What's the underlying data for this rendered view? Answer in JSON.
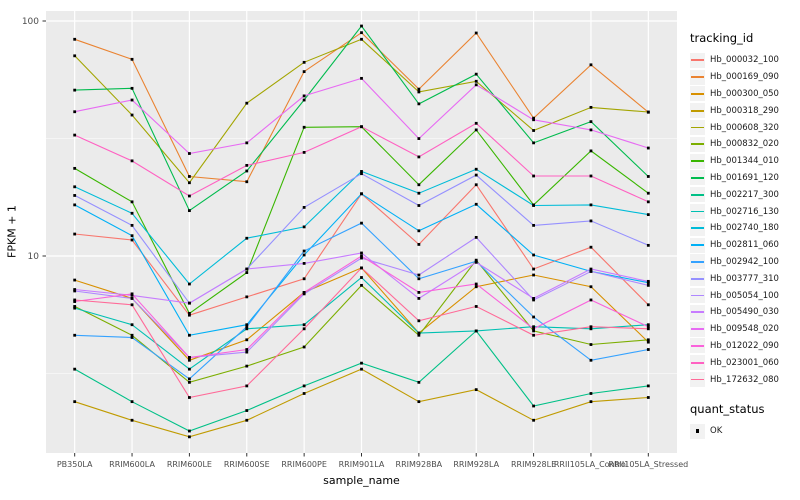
{
  "chart_data": {
    "type": "line",
    "title": "",
    "xlabel": "sample_name",
    "ylabel": "FPKM + 1",
    "y_scale": "log10",
    "y_ticks": [
      100,
      10
    ],
    "y_minor_ticks": [
      31.62,
      3.162
    ],
    "ylim": [
      1.45,
      110
    ],
    "grid": "on",
    "panel_bg": "#EBEBEB",
    "grid_color": "#FFFFFF",
    "point_color": "#000000",
    "legend_position": "right",
    "categories": [
      "PB350LA",
      "RRIM600LA",
      "RRIM600LE",
      "RRIM600SE",
      "RRIM600PE",
      "RRIM901LA",
      "RRIM928BA",
      "RRIM928LA",
      "RRIM928LE",
      "RRII105LA_Control",
      "RRII105LA_Stressed"
    ],
    "series": [
      {
        "name": "Hb_000032_100",
        "color": "#F8766D",
        "values": [
          12.4,
          11.7,
          5.6,
          6.7,
          8.0,
          18.4,
          11.2,
          20.1,
          8.8,
          10.9,
          6.2
        ]
      },
      {
        "name": "Hb_000169_090",
        "color": "#EA8331",
        "values": [
          83.6,
          68.7,
          21.8,
          20.7,
          60.9,
          89.2,
          51.3,
          88.9,
          38.6,
          65.1,
          40.9
        ]
      },
      {
        "name": "Hb_000300_050",
        "color": "#D89000",
        "values": [
          7.9,
          6.6,
          3.6,
          4.4,
          7.0,
          8.9,
          4.7,
          7.4,
          8.3,
          7.4,
          4.3
        ]
      },
      {
        "name": "Hb_000318_290",
        "color": "#C09B00",
        "values": [
          2.4,
          2.0,
          1.7,
          2.0,
          2.6,
          3.3,
          2.4,
          2.7,
          2.0,
          2.4,
          2.5
        ]
      },
      {
        "name": "Hb_000608_320",
        "color": "#A3A500",
        "values": [
          71.1,
          39.8,
          20.5,
          44.7,
          66.7,
          83.6,
          49.9,
          55.4,
          34.2,
          42.9,
          41.0
        ]
      },
      {
        "name": "Hb_000832_020",
        "color": "#7CAE00",
        "values": [
          6.1,
          4.6,
          2.9,
          3.4,
          4.1,
          7.5,
          4.6,
          9.6,
          4.8,
          4.2,
          4.4
        ]
      },
      {
        "name": "Hb_001344_010",
        "color": "#39B600",
        "values": [
          23.6,
          17.0,
          5.7,
          8.5,
          35.3,
          35.5,
          20.1,
          34.4,
          16.5,
          28.0,
          18.5
        ]
      },
      {
        "name": "Hb_001691_120",
        "color": "#00BB4E",
        "values": [
          50.8,
          51.7,
          15.6,
          23.0,
          46.1,
          95.2,
          44.4,
          59.4,
          30.3,
          37.3,
          21.8
        ]
      },
      {
        "name": "Hb_002217_300",
        "color": "#00C087",
        "values": [
          3.3,
          2.4,
          1.8,
          2.2,
          2.8,
          3.5,
          2.9,
          4.8,
          2.3,
          2.6,
          2.8
        ]
      },
      {
        "name": "Hb_002716_130",
        "color": "#00C0B2",
        "values": [
          6.0,
          5.1,
          3.3,
          4.9,
          5.1,
          8.1,
          4.7,
          4.8,
          5.0,
          4.9,
          5.1
        ]
      },
      {
        "name": "Hb_002740_180",
        "color": "#00BCD8",
        "values": [
          19.7,
          15.2,
          7.6,
          11.9,
          13.3,
          22.9,
          18.5,
          23.4,
          16.4,
          16.5,
          15.0
        ]
      },
      {
        "name": "Hb_002811_060",
        "color": "#00B0F6",
        "values": [
          16.5,
          12.2,
          4.6,
          5.1,
          10.1,
          18.4,
          12.8,
          16.6,
          10.1,
          8.6,
          7.7
        ]
      },
      {
        "name": "Hb_002942_100",
        "color": "#35A2FF",
        "values": [
          4.6,
          4.5,
          3.0,
          5.0,
          10.5,
          13.8,
          8.0,
          9.5,
          5.5,
          3.6,
          4.0
        ]
      },
      {
        "name": "Hb_003777_310",
        "color": "#9590FF",
        "values": [
          18.1,
          13.5,
          6.3,
          8.8,
          16.1,
          22.4,
          16.4,
          22.1,
          13.5,
          14.1,
          11.1
        ]
      },
      {
        "name": "Hb_005054_100",
        "color": "#AE87FF",
        "values": [
          7.1,
          6.6,
          3.7,
          3.9,
          6.9,
          9.8,
          8.3,
          12.0,
          6.5,
          8.6,
          7.5
        ]
      },
      {
        "name": "Hb_005490_030",
        "color": "#C77CFF",
        "values": [
          7.2,
          6.8,
          6.3,
          8.8,
          9.3,
          10.3,
          6.6,
          9.4,
          6.6,
          8.8,
          7.8
        ]
      },
      {
        "name": "Hb_009548_020",
        "color": "#E76BF3",
        "values": [
          41.1,
          46.1,
          27.3,
          30.3,
          48.0,
          57.0,
          31.6,
          53.5,
          38.0,
          34.4,
          28.8
        ]
      },
      {
        "name": "Hb_012022_090",
        "color": "#FA62DB",
        "values": [
          6.4,
          6.9,
          3.7,
          4.0,
          7.0,
          10.0,
          7.0,
          7.6,
          4.9,
          6.5,
          5.0
        ]
      },
      {
        "name": "Hb_023001_060",
        "color": "#FF61C2",
        "values": [
          32.7,
          25.4,
          18.0,
          24.3,
          27.6,
          35.5,
          26.4,
          36.7,
          21.9,
          21.9,
          17.0
        ]
      },
      {
        "name": "Hb_172632_080",
        "color": "#FF6A98",
        "values": [
          6.5,
          6.2,
          2.5,
          2.8,
          4.9,
          8.9,
          5.3,
          6.1,
          4.6,
          5.0,
          4.9
        ]
      }
    ]
  },
  "legend": {
    "title": "tracking_id"
  },
  "legend2": {
    "title": "quant_status",
    "entries": [
      "OK"
    ]
  }
}
